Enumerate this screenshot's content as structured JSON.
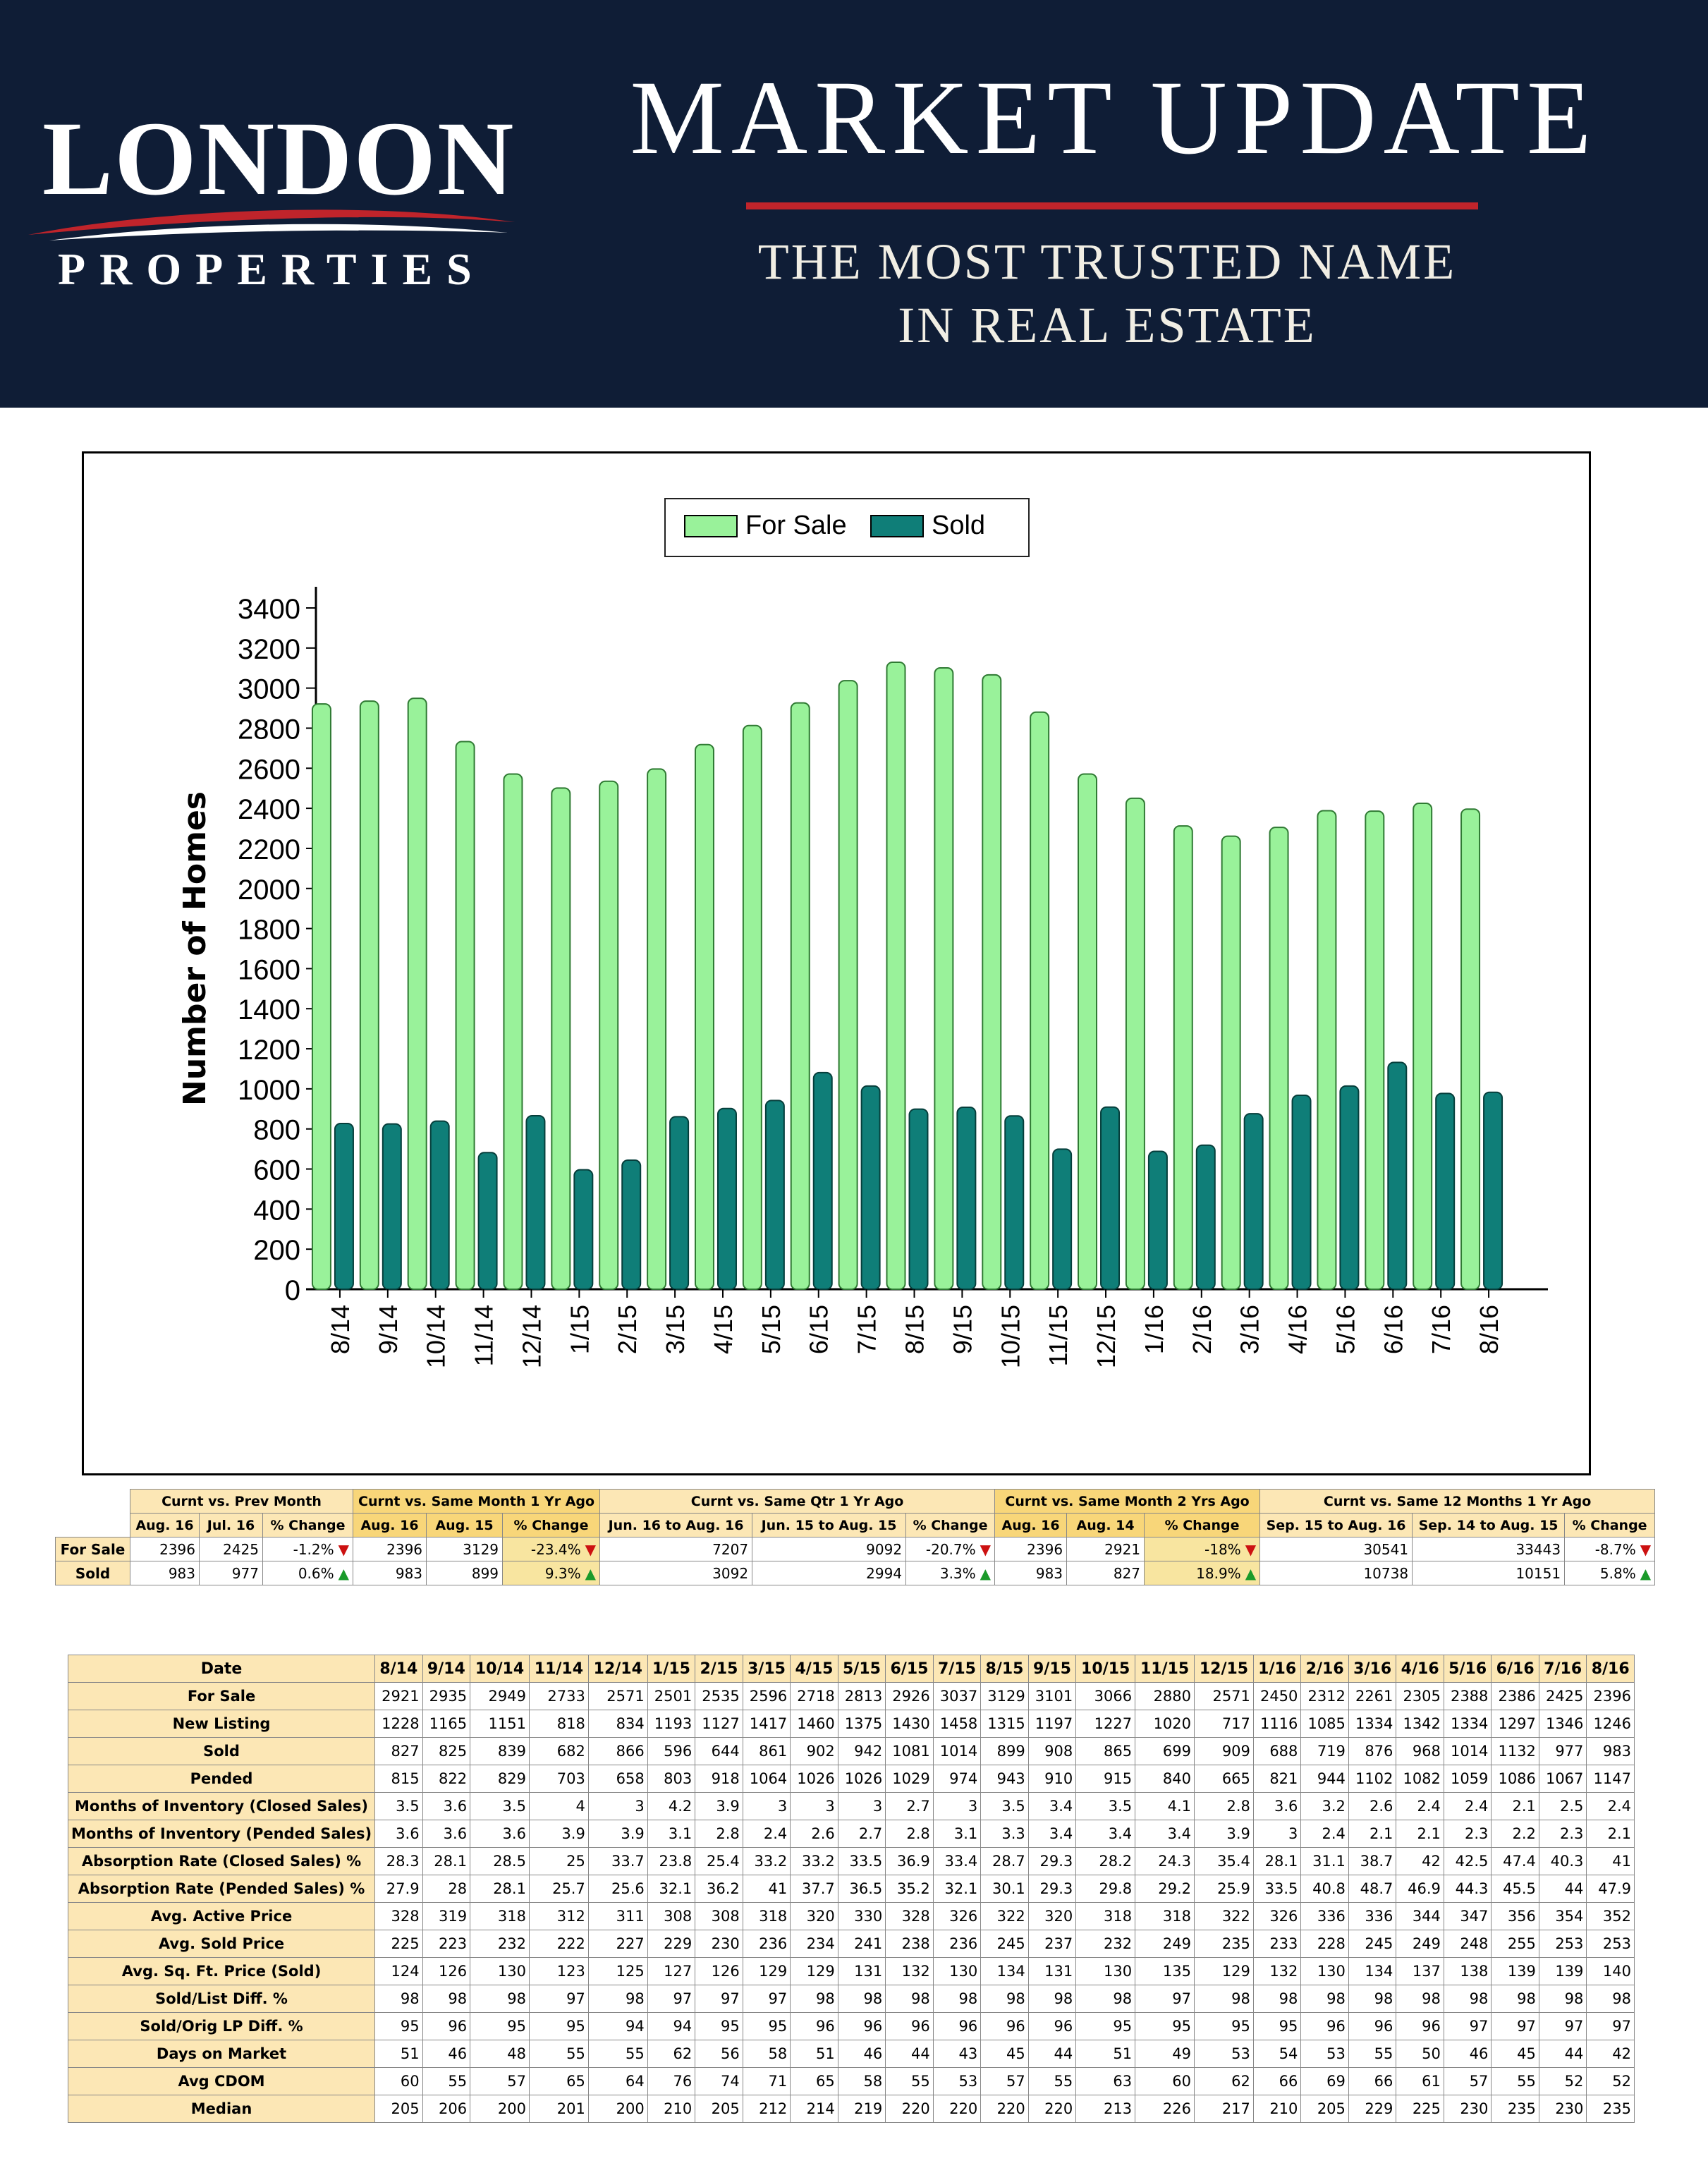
{
  "header": {
    "logo_name": "LONDON",
    "logo_sub": "PROPERTIES",
    "title": "MARKET UPDATE",
    "tagline_line1": "THE MOST TRUSTED NAME",
    "tagline_line2": "IN REAL ESTATE",
    "colors": {
      "background": "#0f1d36",
      "accent": "#c0242b"
    }
  },
  "chart_data": {
    "type": "bar",
    "ylabel": "Number of Homes",
    "xlabel": "",
    "ylim": [
      0,
      3400
    ],
    "yticks": [
      0,
      200,
      400,
      600,
      800,
      1000,
      1200,
      1400,
      1600,
      1800,
      2000,
      2200,
      2400,
      2600,
      2800,
      3000,
      3200,
      3400
    ],
    "legend_position": "top-center",
    "grid": false,
    "categories": [
      "8/14",
      "9/14",
      "10/14",
      "11/14",
      "12/14",
      "1/15",
      "2/15",
      "3/15",
      "4/15",
      "5/15",
      "6/15",
      "7/15",
      "8/15",
      "9/15",
      "10/15",
      "11/15",
      "12/15",
      "1/16",
      "2/16",
      "3/16",
      "4/16",
      "5/16",
      "6/16",
      "7/16",
      "8/16"
    ],
    "series": [
      {
        "name": "For Sale",
        "color": "#99f29a",
        "values": [
          2921,
          2935,
          2949,
          2733,
          2571,
          2501,
          2535,
          2596,
          2718,
          2813,
          2926,
          3037,
          3129,
          3101,
          3066,
          2880,
          2571,
          2450,
          2312,
          2261,
          2305,
          2388,
          2386,
          2425,
          2396
        ]
      },
      {
        "name": "Sold",
        "color": "#0f7e78",
        "values": [
          827,
          825,
          839,
          682,
          866,
          596,
          644,
          861,
          902,
          942,
          1081,
          1014,
          899,
          908,
          865,
          699,
          909,
          688,
          719,
          876,
          968,
          1014,
          1132,
          977,
          983
        ]
      }
    ]
  },
  "comparison": {
    "groups": [
      {
        "title": "Curnt vs. Prev Month",
        "highlight": false,
        "cols": [
          "Aug. 16",
          "Jul. 16",
          "% Change"
        ]
      },
      {
        "title": "Curnt vs. Same Month 1 Yr Ago",
        "highlight": true,
        "cols": [
          "Aug. 16",
          "Aug. 15",
          "% Change"
        ]
      },
      {
        "title": "Curnt vs. Same Qtr 1 Yr Ago",
        "highlight": false,
        "cols": [
          "Jun. 16 to Aug. 16",
          "Jun. 15 to Aug. 15",
          "% Change"
        ]
      },
      {
        "title": "Curnt vs. Same Month 2 Yrs Ago",
        "highlight": true,
        "cols": [
          "Aug. 16",
          "Aug. 14",
          "% Change"
        ]
      },
      {
        "title": "Curnt vs. Same 12 Months 1 Yr Ago",
        "highlight": false,
        "cols": [
          "Sep. 15 to Aug. 16",
          "Sep. 14 to Aug. 15",
          "% Change"
        ]
      }
    ],
    "rows": [
      {
        "label": "For Sale",
        "groups": [
          {
            "a": "2396",
            "b": "2425",
            "pct": "-1.2%",
            "dir": "down"
          },
          {
            "a": "2396",
            "b": "3129",
            "pct": "-23.4%",
            "dir": "down"
          },
          {
            "a": "7207",
            "b": "9092",
            "pct": "-20.7%",
            "dir": "down"
          },
          {
            "a": "2396",
            "b": "2921",
            "pct": "-18%",
            "dir": "down"
          },
          {
            "a": "30541",
            "b": "33443",
            "pct": "-8.7%",
            "dir": "down"
          }
        ]
      },
      {
        "label": "Sold",
        "groups": [
          {
            "a": "983",
            "b": "977",
            "pct": "0.6%",
            "dir": "up"
          },
          {
            "a": "983",
            "b": "899",
            "pct": "9.3%",
            "dir": "up"
          },
          {
            "a": "3092",
            "b": "2994",
            "pct": "3.3%",
            "dir": "up"
          },
          {
            "a": "983",
            "b": "827",
            "pct": "18.9%",
            "dir": "up"
          },
          {
            "a": "10738",
            "b": "10151",
            "pct": "5.8%",
            "dir": "up"
          }
        ]
      }
    ]
  },
  "stats": {
    "header_label": "Date",
    "months": [
      "8/14",
      "9/14",
      "10/14",
      "11/14",
      "12/14",
      "1/15",
      "2/15",
      "3/15",
      "4/15",
      "5/15",
      "6/15",
      "7/15",
      "8/15",
      "9/15",
      "10/15",
      "11/15",
      "12/15",
      "1/16",
      "2/16",
      "3/16",
      "4/16",
      "5/16",
      "6/16",
      "7/16",
      "8/16"
    ],
    "rows": [
      {
        "label": "For Sale",
        "values": [
          "2921",
          "2935",
          "2949",
          "2733",
          "2571",
          "2501",
          "2535",
          "2596",
          "2718",
          "2813",
          "2926",
          "3037",
          "3129",
          "3101",
          "3066",
          "2880",
          "2571",
          "2450",
          "2312",
          "2261",
          "2305",
          "2388",
          "2386",
          "2425",
          "2396"
        ]
      },
      {
        "label": "New Listing",
        "values": [
          "1228",
          "1165",
          "1151",
          "818",
          "834",
          "1193",
          "1127",
          "1417",
          "1460",
          "1375",
          "1430",
          "1458",
          "1315",
          "1197",
          "1227",
          "1020",
          "717",
          "1116",
          "1085",
          "1334",
          "1342",
          "1334",
          "1297",
          "1346",
          "1246"
        ]
      },
      {
        "label": "Sold",
        "values": [
          "827",
          "825",
          "839",
          "682",
          "866",
          "596",
          "644",
          "861",
          "902",
          "942",
          "1081",
          "1014",
          "899",
          "908",
          "865",
          "699",
          "909",
          "688",
          "719",
          "876",
          "968",
          "1014",
          "1132",
          "977",
          "983"
        ]
      },
      {
        "label": "Pended",
        "values": [
          "815",
          "822",
          "829",
          "703",
          "658",
          "803",
          "918",
          "1064",
          "1026",
          "1026",
          "1029",
          "974",
          "943",
          "910",
          "915",
          "840",
          "665",
          "821",
          "944",
          "1102",
          "1082",
          "1059",
          "1086",
          "1067",
          "1147"
        ]
      },
      {
        "label": "Months of Inventory (Closed Sales)",
        "values": [
          "3.5",
          "3.6",
          "3.5",
          "4",
          "3",
          "4.2",
          "3.9",
          "3",
          "3",
          "3",
          "2.7",
          "3",
          "3.5",
          "3.4",
          "3.5",
          "4.1",
          "2.8",
          "3.6",
          "3.2",
          "2.6",
          "2.4",
          "2.4",
          "2.1",
          "2.5",
          "2.4"
        ]
      },
      {
        "label": "Months of Inventory (Pended Sales)",
        "values": [
          "3.6",
          "3.6",
          "3.6",
          "3.9",
          "3.9",
          "3.1",
          "2.8",
          "2.4",
          "2.6",
          "2.7",
          "2.8",
          "3.1",
          "3.3",
          "3.4",
          "3.4",
          "3.4",
          "3.9",
          "3",
          "2.4",
          "2.1",
          "2.1",
          "2.3",
          "2.2",
          "2.3",
          "2.1"
        ]
      },
      {
        "label": "Absorption Rate (Closed Sales) %",
        "values": [
          "28.3",
          "28.1",
          "28.5",
          "25",
          "33.7",
          "23.8",
          "25.4",
          "33.2",
          "33.2",
          "33.5",
          "36.9",
          "33.4",
          "28.7",
          "29.3",
          "28.2",
          "24.3",
          "35.4",
          "28.1",
          "31.1",
          "38.7",
          "42",
          "42.5",
          "47.4",
          "40.3",
          "41"
        ]
      },
      {
        "label": "Absorption Rate (Pended Sales) %",
        "values": [
          "27.9",
          "28",
          "28.1",
          "25.7",
          "25.6",
          "32.1",
          "36.2",
          "41",
          "37.7",
          "36.5",
          "35.2",
          "32.1",
          "30.1",
          "29.3",
          "29.8",
          "29.2",
          "25.9",
          "33.5",
          "40.8",
          "48.7",
          "46.9",
          "44.3",
          "45.5",
          "44",
          "47.9"
        ]
      },
      {
        "label": "Avg. Active Price",
        "values": [
          "328",
          "319",
          "318",
          "312",
          "311",
          "308",
          "308",
          "318",
          "320",
          "330",
          "328",
          "326",
          "322",
          "320",
          "318",
          "318",
          "322",
          "326",
          "336",
          "336",
          "344",
          "347",
          "356",
          "354",
          "352"
        ]
      },
      {
        "label": "Avg. Sold Price",
        "values": [
          "225",
          "223",
          "232",
          "222",
          "227",
          "229",
          "230",
          "236",
          "234",
          "241",
          "238",
          "236",
          "245",
          "237",
          "232",
          "249",
          "235",
          "233",
          "228",
          "245",
          "249",
          "248",
          "255",
          "253",
          "253"
        ]
      },
      {
        "label": "Avg. Sq. Ft. Price (Sold)",
        "values": [
          "124",
          "126",
          "130",
          "123",
          "125",
          "127",
          "126",
          "129",
          "129",
          "131",
          "132",
          "130",
          "134",
          "131",
          "130",
          "135",
          "129",
          "132",
          "130",
          "134",
          "137",
          "138",
          "139",
          "139",
          "140"
        ]
      },
      {
        "label": "Sold/List Diff. %",
        "values": [
          "98",
          "98",
          "98",
          "97",
          "98",
          "97",
          "97",
          "97",
          "98",
          "98",
          "98",
          "98",
          "98",
          "98",
          "98",
          "97",
          "98",
          "98",
          "98",
          "98",
          "98",
          "98",
          "98",
          "98",
          "98"
        ]
      },
      {
        "label": "Sold/Orig LP Diff. %",
        "values": [
          "95",
          "96",
          "95",
          "95",
          "94",
          "94",
          "95",
          "95",
          "96",
          "96",
          "96",
          "96",
          "96",
          "96",
          "95",
          "95",
          "95",
          "95",
          "96",
          "96",
          "96",
          "97",
          "97",
          "97",
          "97"
        ]
      },
      {
        "label": "Days on Market",
        "values": [
          "51",
          "46",
          "48",
          "55",
          "55",
          "62",
          "56",
          "58",
          "51",
          "46",
          "44",
          "43",
          "45",
          "44",
          "51",
          "49",
          "53",
          "54",
          "53",
          "55",
          "50",
          "46",
          "45",
          "44",
          "42"
        ]
      },
      {
        "label": "Avg CDOM",
        "values": [
          "60",
          "55",
          "57",
          "65",
          "64",
          "76",
          "74",
          "71",
          "65",
          "58",
          "55",
          "53",
          "57",
          "55",
          "63",
          "60",
          "62",
          "66",
          "69",
          "66",
          "61",
          "57",
          "55",
          "52",
          "52"
        ]
      },
      {
        "label": "Median",
        "values": [
          "205",
          "206",
          "200",
          "201",
          "200",
          "210",
          "205",
          "212",
          "214",
          "219",
          "220",
          "220",
          "220",
          "220",
          "213",
          "226",
          "217",
          "210",
          "205",
          "229",
          "225",
          "230",
          "235",
          "230",
          "235"
        ]
      }
    ]
  }
}
